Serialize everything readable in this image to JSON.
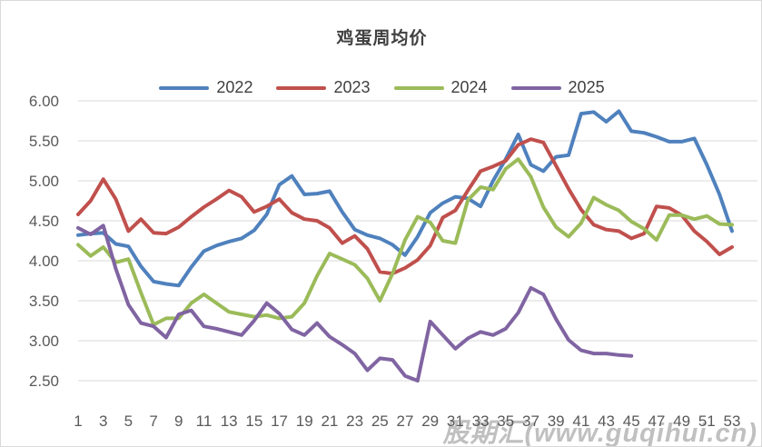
{
  "title": "鸡蛋周均价",
  "watermark": "股期汇(www.guqihui.cn)",
  "colors": {
    "blue_2022": "#4F81BD",
    "red_2023": "#C0504D",
    "green_2024": "#9BBB59",
    "purple_2025": "#8064A2",
    "gridline": "#D9D9D9",
    "axis_text": "#595959",
    "title_text": "#404040"
  },
  "chart_data": {
    "type": "line",
    "title": "鸡蛋周均价",
    "xlabel": "",
    "ylabel": "",
    "ylim": [
      2.5,
      6.0
    ],
    "ytick_step": 0.5,
    "ytick_labels": [
      "6.00",
      "5.50",
      "5.00",
      "4.50",
      "4.00",
      "3.50",
      "3.00",
      "2.50"
    ],
    "xtick_labels": [
      "1",
      "3",
      "5",
      "7",
      "9",
      "11",
      "13",
      "15",
      "17",
      "19",
      "21",
      "23",
      "25",
      "27",
      "29",
      "31",
      "33",
      "35",
      "37",
      "39",
      "41",
      "43",
      "45",
      "47",
      "49",
      "51",
      "53"
    ],
    "x_weeks": 53,
    "grid": true,
    "legend_position": "top",
    "series": [
      {
        "name": "2022",
        "color": "#4F81BD",
        "values": [
          4.32,
          4.34,
          4.35,
          4.21,
          4.18,
          3.93,
          3.74,
          3.71,
          3.69,
          3.92,
          4.12,
          4.19,
          4.24,
          4.28,
          4.38,
          4.58,
          4.95,
          5.06,
          4.83,
          4.84,
          4.87,
          4.61,
          4.39,
          4.32,
          4.28,
          4.2,
          4.07,
          4.3,
          4.6,
          4.72,
          4.8,
          4.78,
          4.68,
          5.0,
          5.27,
          5.58,
          5.2,
          5.12,
          5.3,
          5.32,
          5.84,
          5.86,
          5.74,
          5.87,
          5.62,
          5.6,
          5.55,
          5.49,
          5.49,
          5.53,
          5.2,
          4.83,
          4.37
        ]
      },
      {
        "name": "2023",
        "color": "#C0504D",
        "values": [
          4.58,
          4.75,
          5.02,
          4.77,
          4.37,
          4.52,
          4.35,
          4.34,
          4.42,
          4.55,
          4.67,
          4.77,
          4.88,
          4.8,
          4.61,
          4.68,
          4.77,
          4.6,
          4.52,
          4.5,
          4.41,
          4.22,
          4.31,
          4.15,
          3.86,
          3.84,
          3.91,
          4.01,
          4.19,
          4.54,
          4.63,
          4.88,
          5.12,
          5.18,
          5.25,
          5.45,
          5.52,
          5.48,
          5.19,
          4.9,
          4.64,
          4.45,
          4.39,
          4.37,
          4.28,
          4.34,
          4.68,
          4.66,
          4.57,
          4.37,
          4.24,
          4.08,
          4.17
        ]
      },
      {
        "name": "2024",
        "color": "#9BBB59",
        "values": [
          4.2,
          4.06,
          4.17,
          3.98,
          4.02,
          3.6,
          3.2,
          3.28,
          3.28,
          3.47,
          3.58,
          3.47,
          3.36,
          3.33,
          3.3,
          3.32,
          3.28,
          3.3,
          3.47,
          3.81,
          4.09,
          4.02,
          3.95,
          3.78,
          3.5,
          3.84,
          4.26,
          4.55,
          4.48,
          4.25,
          4.22,
          4.76,
          4.92,
          4.89,
          5.15,
          5.27,
          5.05,
          4.67,
          4.42,
          4.3,
          4.47,
          4.79,
          4.7,
          4.63,
          4.49,
          4.4,
          4.26,
          4.57,
          4.57,
          4.52,
          4.56,
          4.46,
          4.45
        ]
      },
      {
        "name": "2025",
        "color": "#8064A2",
        "values": [
          4.41,
          4.33,
          4.44,
          3.9,
          3.45,
          3.22,
          3.18,
          3.04,
          3.33,
          3.38,
          3.18,
          3.15,
          3.11,
          3.07,
          3.25,
          3.47,
          3.34,
          3.14,
          3.07,
          3.22,
          3.05,
          2.95,
          2.84,
          2.63,
          2.78,
          2.76,
          2.56,
          2.5,
          3.24,
          3.07,
          2.9,
          3.03,
          3.11,
          3.07,
          3.15,
          3.35,
          3.66,
          3.58,
          3.27,
          3.01,
          2.88,
          2.84,
          2.84,
          2.82,
          2.81
        ]
      }
    ]
  }
}
